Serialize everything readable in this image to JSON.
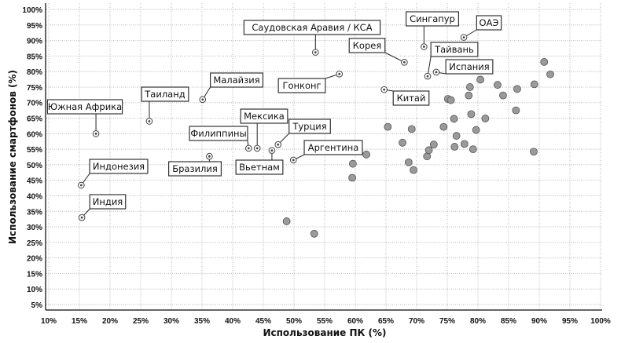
{
  "chart_data": {
    "type": "scatter",
    "title": "",
    "xlabel": "Использование ПК (%)",
    "ylabel": "Использование смартфонов (%)",
    "xlim": [
      10,
      100
    ],
    "ylim": [
      5,
      100
    ],
    "xticks": [
      "10%",
      "15%",
      "20%",
      "25%",
      "30%",
      "35%",
      "40%",
      "45%",
      "50%",
      "55%",
      "60%",
      "65%",
      "70%",
      "75%",
      "80%",
      "85%",
      "90%",
      "95%",
      "100%"
    ],
    "yticks": [
      "5%",
      "10%",
      "15%",
      "20%",
      "25%",
      "30%",
      "35%",
      "40%",
      "45%",
      "50%",
      "55%",
      "60%",
      "65%",
      "70%",
      "75%",
      "80%",
      "85%",
      "90%",
      "95%",
      "100%"
    ],
    "grid": true,
    "colors": {
      "point": "#9a9a9a",
      "point_stroke": "#555555",
      "labeled_point": "#ffffff",
      "grid": "#bbbbbb"
    },
    "labeled_points": [
      {
        "label": "Южная Африка",
        "x": 17.7,
        "y": 60
      },
      {
        "label": "Индонезия",
        "x": 15.3,
        "y": 43.4
      },
      {
        "label": "Индия",
        "x": 15.4,
        "y": 33
      },
      {
        "label": "Таиланд",
        "x": 26.4,
        "y": 64
      },
      {
        "label": "Малайзия",
        "x": 35.1,
        "y": 71
      },
      {
        "label": "Бразилия",
        "x": 36.2,
        "y": 52.7
      },
      {
        "label": "Филиппины",
        "x": 42.6,
        "y": 55.3
      },
      {
        "label": "Мексика",
        "x": 44,
        "y": 55.3
      },
      {
        "label": "Вьетнам",
        "x": 46.4,
        "y": 54.6
      },
      {
        "label": "Турция",
        "x": 47.4,
        "y": 56.5
      },
      {
        "label": "Аргентина",
        "x": 49.9,
        "y": 51.5
      },
      {
        "label": "Саудовская Аравия / КСА",
        "x": 53.5,
        "y": 86.2
      },
      {
        "label": "Гонконг",
        "x": 57.4,
        "y": 79.2
      },
      {
        "label": "Китай",
        "x": 64.7,
        "y": 74.2
      },
      {
        "label": "Корея",
        "x": 68,
        "y": 83
      },
      {
        "label": "Сингапур",
        "x": 71.2,
        "y": 88
      },
      {
        "label": "ОАЭ",
        "x": 77.7,
        "y": 91
      },
      {
        "label": "Тайвань",
        "x": 71.8,
        "y": 78.5
      },
      {
        "label": "Испания",
        "x": 73.2,
        "y": 79.8
      }
    ],
    "points": [
      {
        "x": 48.8,
        "y": 31.8
      },
      {
        "x": 53.3,
        "y": 27.8
      },
      {
        "x": 59.6,
        "y": 50.3
      },
      {
        "x": 59.5,
        "y": 45.8
      },
      {
        "x": 61.8,
        "y": 53.3
      },
      {
        "x": 65.3,
        "y": 62.2
      },
      {
        "x": 67.7,
        "y": 57.1
      },
      {
        "x": 68.7,
        "y": 50.8
      },
      {
        "x": 69.5,
        "y": 48.3
      },
      {
        "x": 69.2,
        "y": 61.5
      },
      {
        "x": 71.7,
        "y": 52.7
      },
      {
        "x": 72,
        "y": 54.7
      },
      {
        "x": 72.8,
        "y": 56.5
      },
      {
        "x": 74.4,
        "y": 62.2
      },
      {
        "x": 75.1,
        "y": 71.2
      },
      {
        "x": 75.6,
        "y": 70.8
      },
      {
        "x": 76.1,
        "y": 64.8
      },
      {
        "x": 76.5,
        "y": 59.3
      },
      {
        "x": 76.2,
        "y": 55.8
      },
      {
        "x": 77.8,
        "y": 56.7
      },
      {
        "x": 78.7,
        "y": 75
      },
      {
        "x": 78.9,
        "y": 66.3
      },
      {
        "x": 78.5,
        "y": 72.3
      },
      {
        "x": 79.2,
        "y": 55
      },
      {
        "x": 79.7,
        "y": 61.2
      },
      {
        "x": 80.4,
        "y": 77.4
      },
      {
        "x": 81.2,
        "y": 64.9
      },
      {
        "x": 83.2,
        "y": 75.7
      },
      {
        "x": 84.1,
        "y": 72.3
      },
      {
        "x": 86.2,
        "y": 67.5
      },
      {
        "x": 86.4,
        "y": 74.4
      },
      {
        "x": 89.2,
        "y": 75.9
      },
      {
        "x": 89.1,
        "y": 54.2
      },
      {
        "x": 90.8,
        "y": 83.1
      },
      {
        "x": 91.8,
        "y": 79.1
      }
    ]
  }
}
